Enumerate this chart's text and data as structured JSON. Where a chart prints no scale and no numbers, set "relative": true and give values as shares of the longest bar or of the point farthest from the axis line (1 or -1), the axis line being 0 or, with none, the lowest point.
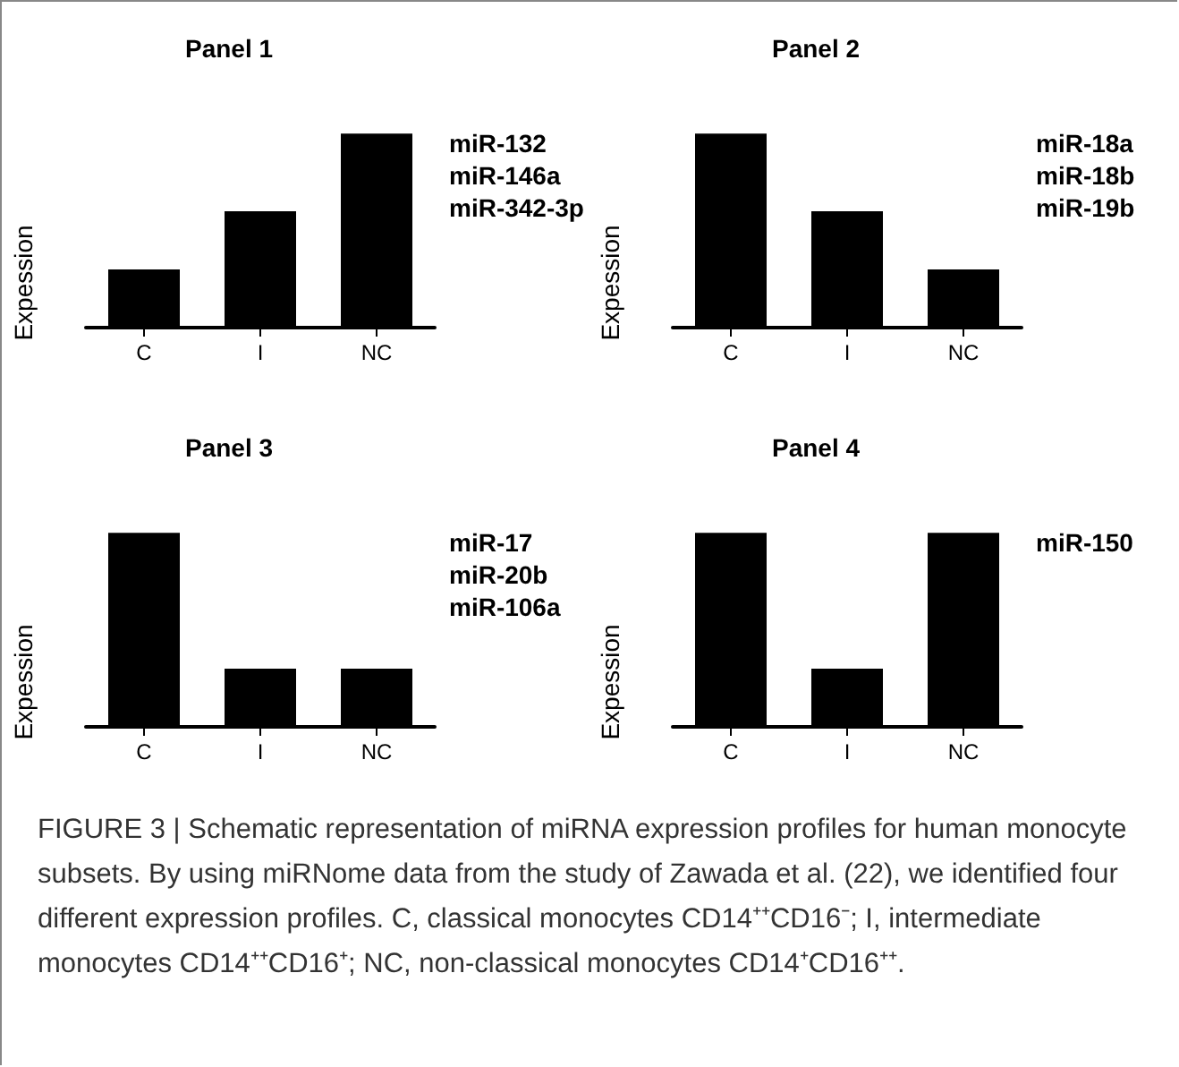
{
  "chart_data": [
    {
      "type": "bar",
      "title": "Panel 1",
      "ylabel": "Expession",
      "categories": [
        "C",
        "I",
        "NC"
      ],
      "values": [
        0.3,
        0.6,
        1
      ],
      "color": "#000000",
      "relative": true,
      "annotations": [
        "miR-132",
        "miR-146a",
        "miR-342-3p"
      ]
    },
    {
      "type": "bar",
      "title": "Panel 2",
      "ylabel": "Expession",
      "categories": [
        "C",
        "I",
        "NC"
      ],
      "values": [
        1,
        0.6,
        0.3
      ],
      "color": "#000000",
      "relative": true,
      "annotations": [
        "miR-18a",
        "miR-18b",
        "miR-19b"
      ]
    },
    {
      "type": "bar",
      "title": "Panel 3",
      "ylabel": "Expession",
      "categories": [
        "C",
        "I",
        "NC"
      ],
      "values": [
        1,
        0.3,
        0.3
      ],
      "color": "#000000",
      "relative": true,
      "annotations": [
        "miR-17",
        "miR-20b",
        "miR-106a"
      ]
    },
    {
      "type": "bar",
      "title": "Panel 4",
      "ylabel": "Expession",
      "categories": [
        "C",
        "I",
        "NC"
      ],
      "values": [
        1,
        0.3,
        1
      ],
      "color": "#000000",
      "relative": true,
      "annotations": [
        "miR-150"
      ]
    },
    {
      "type": "other",
      "annotations": [
        "FIGURE 3 | Schematic representation of miRNA expression profiles for human monocyte subsets. By using miRNome data from the study of Zawada et al. (22), we identified four different expression profiles. C, classical monocytes CD14⁺⁺CD16⁻; I, intermediate monocytes CD14⁺⁺CD16⁺; NC, non-classical monocytes CD14⁺CD16⁺⁺."
      ]
    }
  ]
}
